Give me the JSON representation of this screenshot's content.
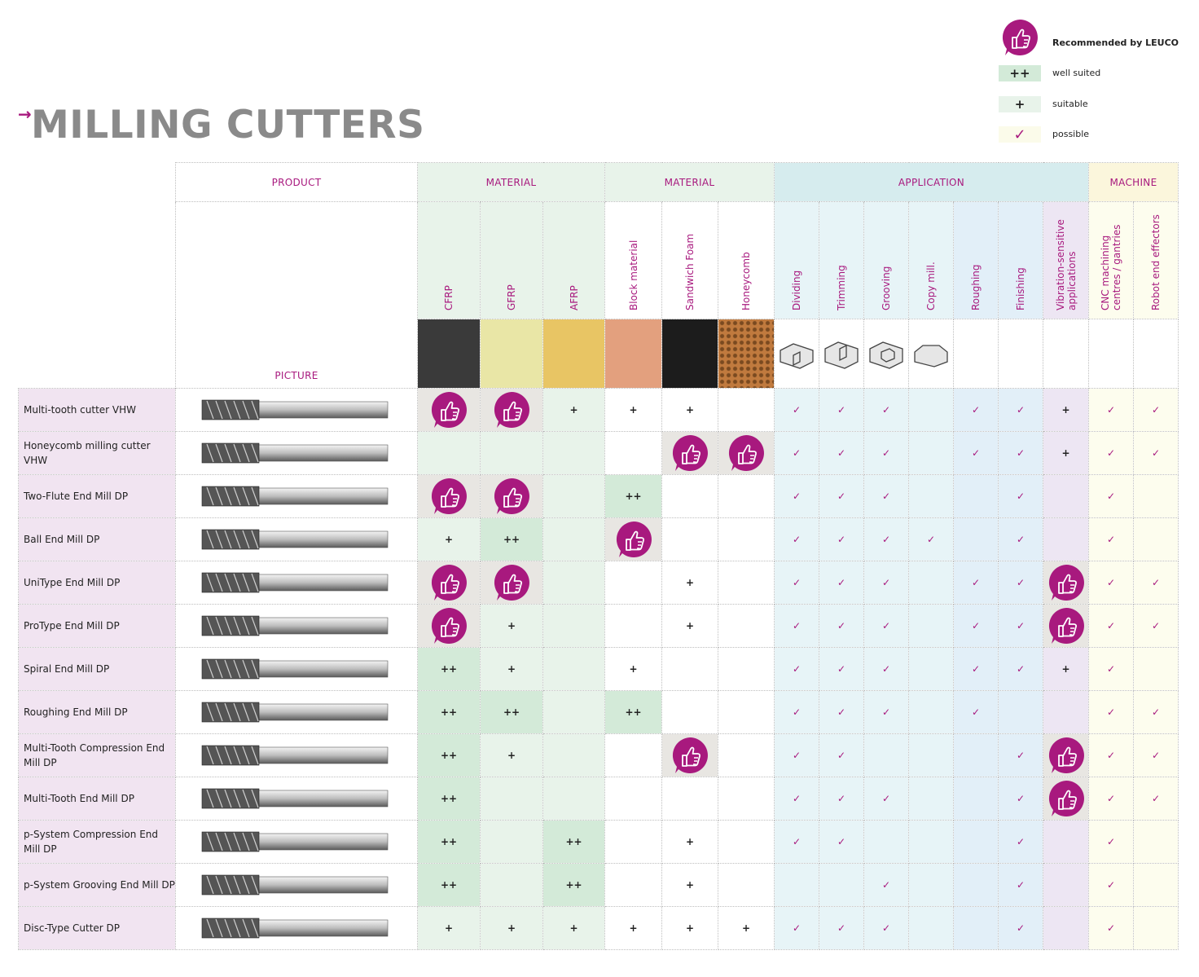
{
  "page": {
    "title": "MILLING CUTTERS",
    "title_arrow": "→"
  },
  "legend": {
    "recommended": "Recommended by LEUCO",
    "well_suited_symbol": "++",
    "well_suited": "well suited",
    "suitable_symbol": "+",
    "suitable": "suitable",
    "possible_symbol": "✓",
    "possible": "possible"
  },
  "groups": {
    "product": "PRODUCT",
    "material1": "MATERIAL",
    "material2": "MATERIAL",
    "application": "APPLICATION",
    "machine": "MACHINE",
    "picture": "PICTURE"
  },
  "columns": [
    {
      "label": "CFRP",
      "bg": "m"
    },
    {
      "label": "GFRP",
      "bg": "m"
    },
    {
      "label": "AFRP",
      "bg": "m"
    },
    {
      "label": "Block material",
      "bg": "mw"
    },
    {
      "label": "Sandwich Foam",
      "bg": "mw"
    },
    {
      "label": "Honeycomb",
      "bg": "mw"
    },
    {
      "label": "Dividing",
      "bg": "a"
    },
    {
      "label": "Trimming",
      "bg": "a"
    },
    {
      "label": "Grooving",
      "bg": "a"
    },
    {
      "label": "Copy mill.",
      "bg": "a"
    },
    {
      "label": "Roughing",
      "bg": "r"
    },
    {
      "label": "Finishing",
      "bg": "r"
    },
    {
      "label": "Vibration-sensitive applications",
      "bg": "v"
    },
    {
      "label": "CNC machining centres / gantries",
      "bg": "mc"
    },
    {
      "label": "Robot end effectors",
      "bg": "mc"
    }
  ],
  "material_colors": [
    "#3a3a3a",
    "#e9e6a6",
    "#e8c564",
    "#e3a07e",
    "#1c1c1c",
    "#c07a3e"
  ],
  "rows": [
    {
      "name": "Multi-tooth cutter VHW",
      "cells": [
        "R",
        "R",
        "+",
        "+",
        "+",
        "",
        "✓",
        "✓",
        "✓",
        "",
        "✓",
        "✓",
        "+",
        "✓",
        "✓"
      ]
    },
    {
      "name": "Honeycomb milling cutter VHW",
      "cells": [
        "",
        "",
        "",
        "",
        "R",
        "R",
        "✓",
        "✓",
        "✓",
        "",
        "✓",
        "✓",
        "+",
        "✓",
        "✓"
      ]
    },
    {
      "name": "Two-Flute End Mill DP",
      "cells": [
        "R",
        "R",
        "",
        "++",
        "",
        "",
        "✓",
        "✓",
        "✓",
        "",
        "",
        "✓",
        "",
        "✓",
        ""
      ]
    },
    {
      "name": "Ball End Mill DP",
      "cells": [
        "+",
        "++",
        "",
        "R",
        "",
        "",
        "✓",
        "✓",
        "✓",
        "✓",
        "",
        "✓",
        "",
        "✓",
        ""
      ]
    },
    {
      "name": "UniType End Mill DP",
      "cells": [
        "R",
        "R",
        "",
        "",
        "+",
        "",
        "✓",
        "✓",
        "✓",
        "",
        "✓",
        "✓",
        "R",
        "✓",
        "✓"
      ]
    },
    {
      "name": "ProType End Mill DP",
      "cells": [
        "R",
        "+",
        "",
        "",
        "+",
        "",
        "✓",
        "✓",
        "✓",
        "",
        "✓",
        "✓",
        "R",
        "✓",
        "✓"
      ]
    },
    {
      "name": "Spiral End Mill DP",
      "cells": [
        "++",
        "+",
        "",
        "+",
        "",
        "",
        "✓",
        "✓",
        "✓",
        "",
        "✓",
        "✓",
        "+",
        "✓",
        ""
      ]
    },
    {
      "name": "Roughing End Mill DP",
      "cells": [
        "++",
        "++",
        "",
        "++",
        "",
        "",
        "✓",
        "✓",
        "✓",
        "",
        "✓",
        "",
        "",
        "✓",
        "✓"
      ]
    },
    {
      "name": "Multi-Tooth Compression End Mill DP",
      "cells": [
        "++",
        "+",
        "",
        "",
        "R",
        "",
        "✓",
        "✓",
        "",
        "",
        "",
        "✓",
        "R",
        "✓",
        "✓"
      ]
    },
    {
      "name": "Multi-Tooth End Mill DP",
      "cells": [
        "++",
        "",
        "",
        "",
        "",
        "",
        "✓",
        "✓",
        "✓",
        "",
        "",
        "✓",
        "R",
        "✓",
        "✓"
      ]
    },
    {
      "name": "p-System Compression End Mill DP",
      "cells": [
        "++",
        "",
        "++",
        "",
        "+",
        "",
        "✓",
        "✓",
        "",
        "",
        "",
        "✓",
        "",
        "✓",
        ""
      ]
    },
    {
      "name": "p-System Grooving End Mill DP",
      "cells": [
        "++",
        "",
        "++",
        "",
        "+",
        "",
        "",
        "",
        "✓",
        "",
        "",
        "✓",
        "",
        "✓",
        ""
      ]
    },
    {
      "name": "Disc-Type Cutter DP",
      "cells": [
        "+",
        "+",
        "+",
        "+",
        "+",
        "+",
        "✓",
        "✓",
        "✓",
        "",
        "",
        "✓",
        "",
        "✓",
        ""
      ]
    }
  ],
  "colors": {
    "accent": "#a8197e",
    "title_gray": "#8a8a8a"
  }
}
